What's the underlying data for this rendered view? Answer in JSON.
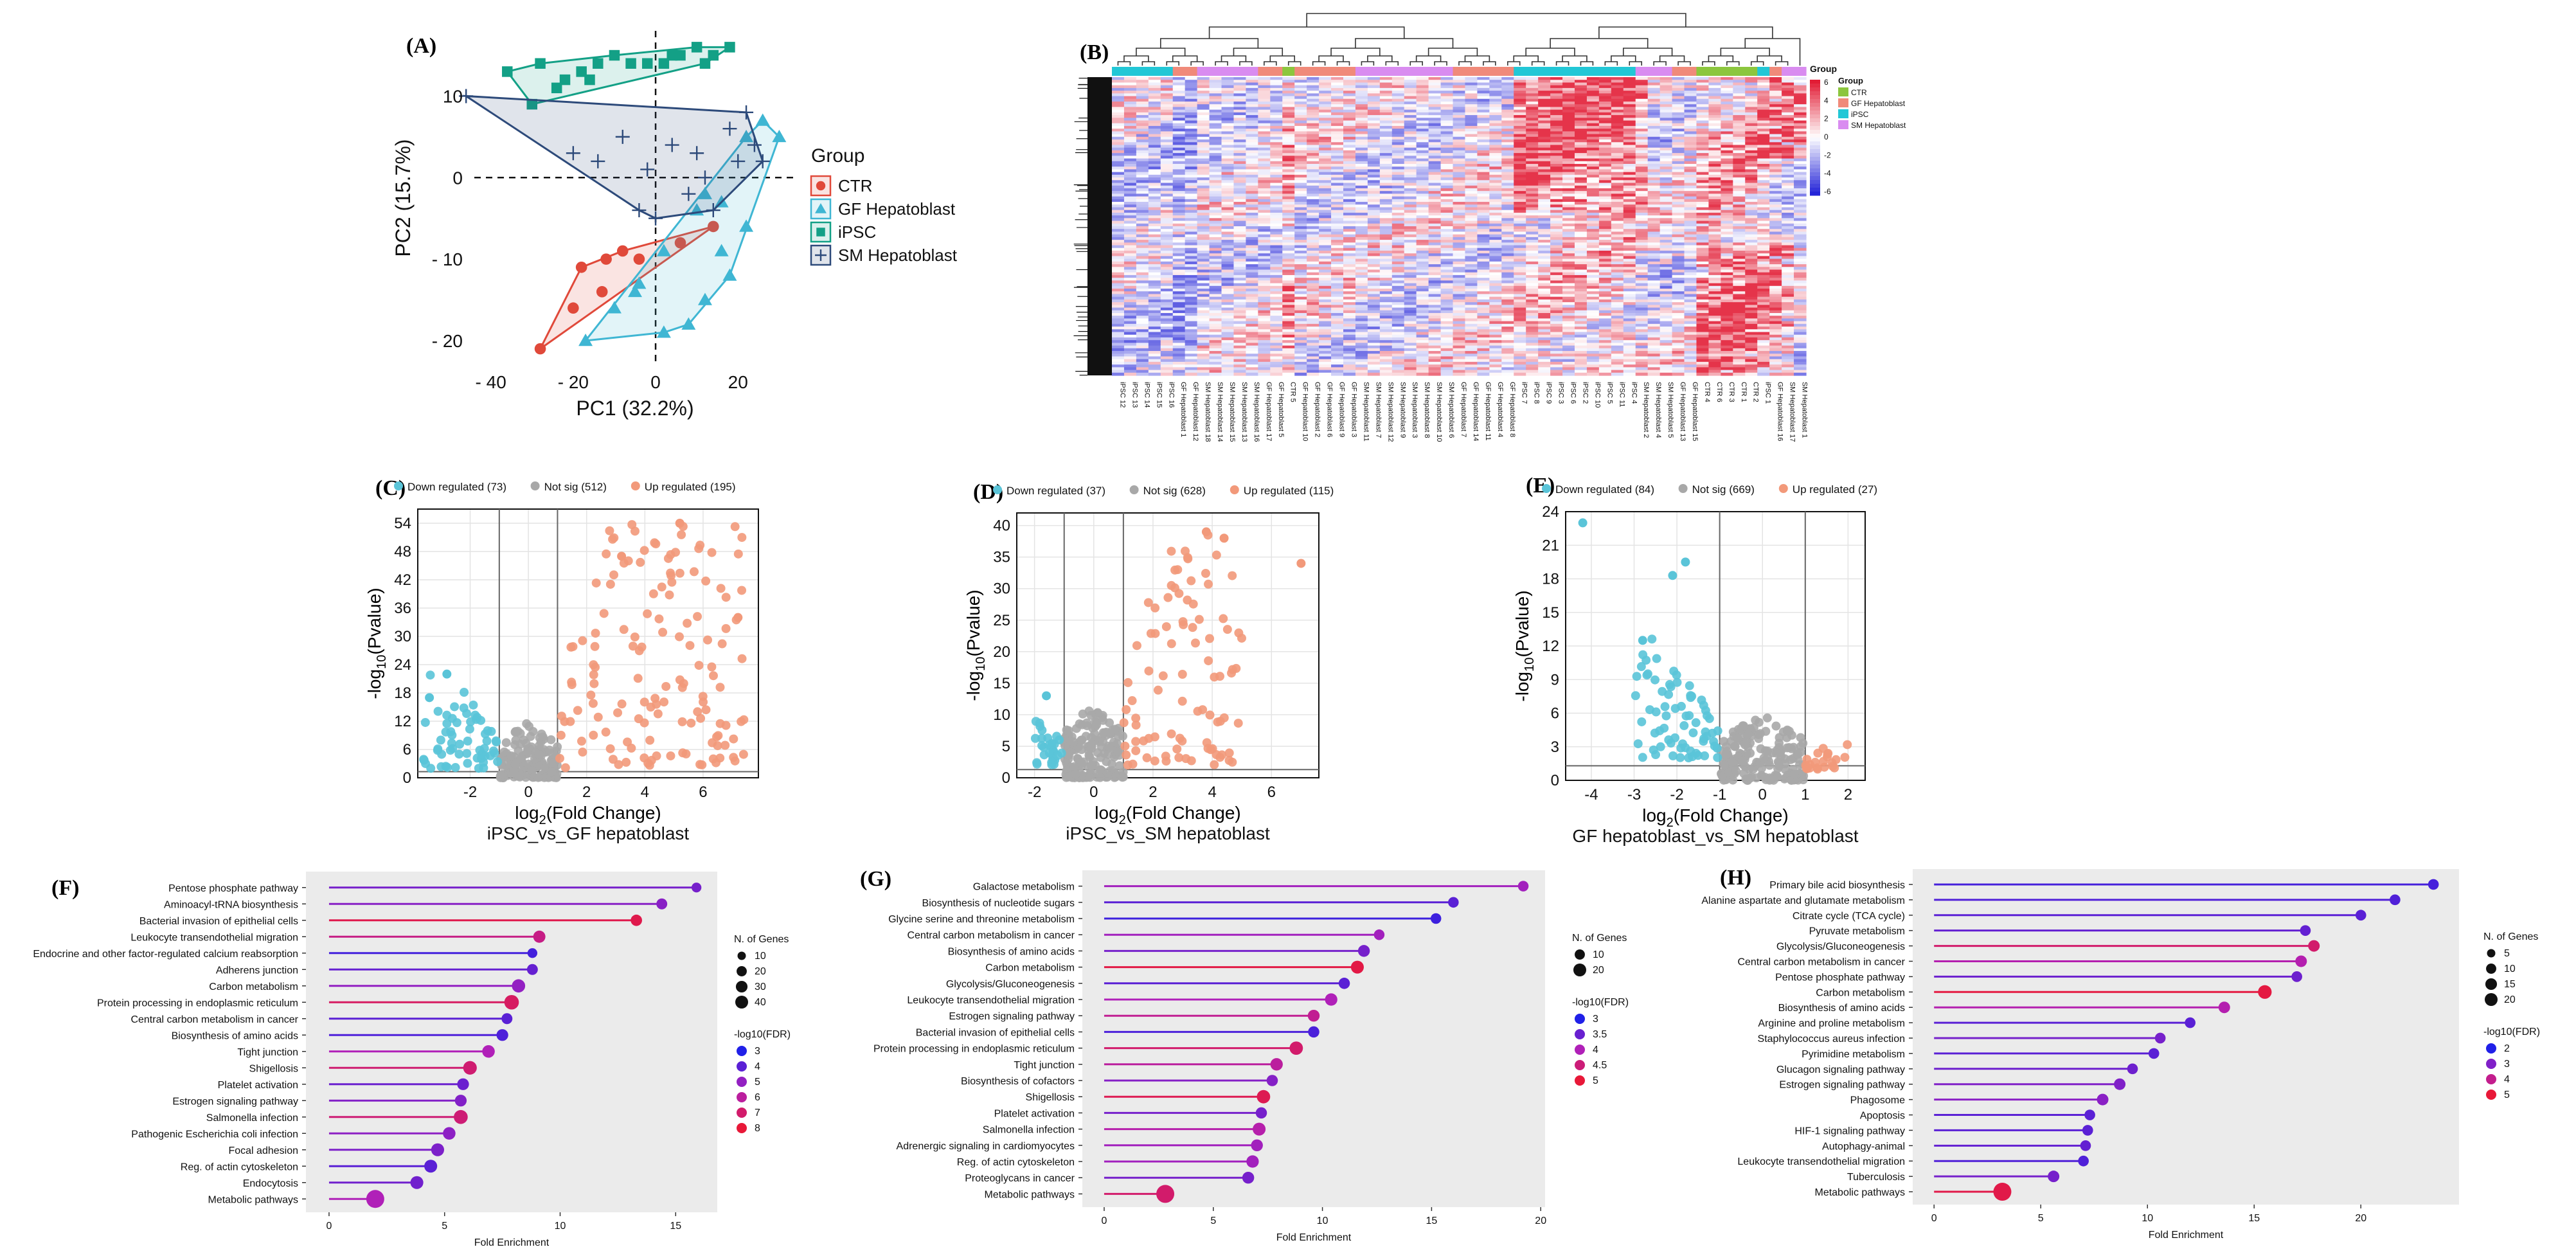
{
  "colors": {
    "ctr": "#e0493a",
    "gf": "#3fb6d3",
    "ipsc": "#13a086",
    "sm": "#2d4a7a",
    "down": "#5ac4d8",
    "ns": "#a8a8a8",
    "up": "#f2997a",
    "panel_bg": "#ebebeb",
    "hm_low": "#1a1ad6",
    "hm_mid": "#ffffff",
    "hm_high": "#e0102a",
    "ann_ctr": "#8cc63e",
    "ann_gf": "#f08a7a",
    "ann_ipsc": "#22c7d6",
    "ann_sm": "#d98cf0"
  },
  "chart_data": [
    {
      "id": "A",
      "type": "scatter",
      "title": "",
      "xlabel": "PC1 (32.2%)",
      "ylabel": "PC2 (15.7%)",
      "xlim": [
        -44,
        34
      ],
      "ylim": [
        -23,
        18
      ],
      "xticks": [
        -40,
        -20,
        0,
        20
      ],
      "xtick_labels": [
        "- 40",
        "- 20",
        "0",
        "20"
      ],
      "yticks": [
        10,
        0,
        -10,
        -20
      ],
      "ytick_labels": [
        "10",
        "0",
        "- 10",
        "- 20"
      ],
      "legend_title": "Group",
      "series": [
        {
          "name": "CTR",
          "marker": "circle",
          "points": [
            [
              -28,
              -21
            ],
            [
              -18,
              -11
            ],
            [
              -12,
              -10
            ],
            [
              -8,
              -9
            ],
            [
              -4,
              -10
            ],
            [
              6,
              -8
            ],
            [
              14,
              -6
            ],
            [
              -13,
              -14
            ],
            [
              -20,
              -16
            ]
          ]
        },
        {
          "name": "GF Hepatoblast",
          "marker": "triangle",
          "points": [
            [
              -17,
              -20
            ],
            [
              -10,
              -16
            ],
            [
              -5,
              -14
            ],
            [
              2,
              -9
            ],
            [
              10,
              -4
            ],
            [
              12,
              -2
            ],
            [
              16,
              -3
            ],
            [
              22,
              5
            ],
            [
              26,
              7
            ],
            [
              30,
              5
            ],
            [
              22,
              -6
            ],
            [
              18,
              -12
            ],
            [
              8,
              -18
            ],
            [
              2,
              -19
            ],
            [
              -4,
              -13
            ],
            [
              12,
              -15
            ],
            [
              16,
              -9
            ]
          ]
        },
        {
          "name": "iPSC",
          "marker": "square",
          "points": [
            [
              -36,
              13
            ],
            [
              -28,
              14
            ],
            [
              -22,
              12
            ],
            [
              -18,
              13
            ],
            [
              -14,
              14
            ],
            [
              -10,
              15
            ],
            [
              -6,
              14
            ],
            [
              -2,
              14
            ],
            [
              2,
              14
            ],
            [
              6,
              15
            ],
            [
              10,
              16
            ],
            [
              14,
              15
            ],
            [
              18,
              16
            ],
            [
              -30,
              9
            ],
            [
              -24,
              11
            ],
            [
              -16,
              12
            ],
            [
              4,
              15
            ],
            [
              12,
              14
            ]
          ]
        },
        {
          "name": "SM Hepatoblast",
          "marker": "plus",
          "points": [
            [
              -46,
              10
            ],
            [
              -8,
              5
            ],
            [
              -14,
              2
            ],
            [
              -20,
              3
            ],
            [
              -4,
              -4
            ],
            [
              0,
              -5
            ],
            [
              8,
              -2
            ],
            [
              12,
              0
            ],
            [
              20,
              2
            ],
            [
              24,
              4
            ],
            [
              22,
              8
            ],
            [
              26,
              2
            ],
            [
              14,
              -4
            ],
            [
              10,
              3
            ],
            [
              -2,
              1
            ],
            [
              4,
              4
            ],
            [
              18,
              6
            ]
          ]
        }
      ]
    },
    {
      "id": "B",
      "type": "heatmap",
      "legend_title": "Group",
      "scale_ticks": [
        "6",
        "4",
        "2",
        "0",
        "-2",
        "-4",
        "-6"
      ],
      "legend_groups": [
        "CTR",
        "GF Hepatoblast",
        "iPSC",
        "SM Hepatoblast"
      ],
      "columns": [
        "iPSC 12",
        "iPSC 13",
        "iPSC 14",
        "iPSC 15",
        "iPSC 16",
        "GF Hepatoblast 1",
        "GF Hepatoblast 12",
        "SM Hepatoblast 18",
        "SM Hepatoblast 14",
        "SM Hepatoblast 15",
        "SM Hepatoblast 13",
        "SM Hepatoblast 16",
        "GF Hepatoblast 17",
        "GF Hepatoblast 5",
        "CTR 5",
        "GF Hepatoblast 10",
        "GF Hepatoblast 2",
        "GF Hepatoblast 6",
        "GF Hepatoblast 9",
        "GF Hepatoblast 3",
        "SM Hepatoblast 11",
        "SM Hepatoblast 7",
        "SM Hepatoblast 12",
        "SM Hepatoblast 9",
        "SM Hepatoblast 3",
        "SM Hepatoblast 8",
        "SM Hepatoblast 10",
        "SM Hepatoblast 6",
        "GF Hepatoblast 7",
        "GF Hepatoblast 14",
        "GF Hepatoblast 11",
        "GF Hepatoblast 4",
        "GF Hepatoblast 8",
        "iPSC 7",
        "iPSC 8",
        "iPSC 9",
        "iPSC 3",
        "iPSC 6",
        "iPSC 2",
        "iPSC 10",
        "iPSC 5",
        "iPSC 11",
        "iPSC 4",
        "SM Hepatoblast 2",
        "SM Hepatoblast 4",
        "SM Hepatoblast 5",
        "GF Hepatoblast 13",
        "GF Hepatoblast 15",
        "CTR 4",
        "CTR 6",
        "CTR 3",
        "CTR 1",
        "CTR 2",
        "iPSC 1",
        "GF Hepatoblast 16",
        "SM Hepatoblast 17",
        "SM Hepatoblast 1"
      ],
      "column_groups": [
        "iPSC",
        "iPSC",
        "iPSC",
        "iPSC",
        "iPSC",
        "GF Hepatoblast",
        "GF Hepatoblast",
        "SM Hepatoblast",
        "SM Hepatoblast",
        "SM Hepatoblast",
        "SM Hepatoblast",
        "SM Hepatoblast",
        "GF Hepatoblast",
        "GF Hepatoblast",
        "CTR",
        "GF Hepatoblast",
        "GF Hepatoblast",
        "GF Hepatoblast",
        "GF Hepatoblast",
        "GF Hepatoblast",
        "SM Hepatoblast",
        "SM Hepatoblast",
        "SM Hepatoblast",
        "SM Hepatoblast",
        "SM Hepatoblast",
        "SM Hepatoblast",
        "SM Hepatoblast",
        "SM Hepatoblast",
        "GF Hepatoblast",
        "GF Hepatoblast",
        "GF Hepatoblast",
        "GF Hepatoblast",
        "GF Hepatoblast",
        "iPSC",
        "iPSC",
        "iPSC",
        "iPSC",
        "iPSC",
        "iPSC",
        "iPSC",
        "iPSC",
        "iPSC",
        "iPSC",
        "SM Hepatoblast",
        "SM Hepatoblast",
        "SM Hepatoblast",
        "GF Hepatoblast",
        "GF Hepatoblast",
        "CTR",
        "CTR",
        "CTR",
        "CTR",
        "CTR",
        "iPSC",
        "GF Hepatoblast",
        "SM Hepatoblast",
        "SM Hepatoblast"
      ]
    },
    {
      "id": "C",
      "type": "scatter",
      "title": "iPSC_vs_GF hepatoblast",
      "xlabel": "log2(Fold Change)",
      "ylabel": "-log10(Pvalue)",
      "xlim": [
        -3.8,
        7.9
      ],
      "ylim": [
        0,
        57
      ],
      "xticks": [
        -2,
        0,
        2,
        4,
        6
      ],
      "yticks": [
        0,
        6,
        12,
        18,
        24,
        30,
        36,
        42,
        48,
        54
      ],
      "vlines": [
        -1,
        1
      ],
      "hline": 1.3,
      "legend": [
        {
          "name": "Down regulated (73)",
          "class": "down"
        },
        {
          "name": "Not sig (512)",
          "class": "ns"
        },
        {
          "name": "Up regulated (195)",
          "class": "up"
        }
      ],
      "seed": 11,
      "n_down": 60,
      "n_ns": 150,
      "n_up": 140,
      "down_range": [
        -3.6,
        -1.0,
        2,
        22
      ],
      "ns_range": [
        -1.0,
        1.0,
        0,
        12
      ],
      "up_range": [
        1.0,
        7.4,
        2,
        54
      ],
      "extra_points": [
        [
          5.2,
          54,
          "up"
        ],
        [
          7.2,
          34,
          "up"
        ],
        [
          3.2,
          47,
          "up"
        ],
        [
          -3.4,
          17,
          "down"
        ],
        [
          -2.8,
          22,
          "down"
        ]
      ]
    },
    {
      "id": "D",
      "type": "scatter",
      "title": "iPSC_vs_SM hepatoblast",
      "xlabel": "log2(Fold Change)",
      "ylabel": "-log10(Pvalue)",
      "xlim": [
        -2.6,
        7.6
      ],
      "ylim": [
        0,
        42
      ],
      "xticks": [
        -2,
        0,
        2,
        4,
        6
      ],
      "yticks": [
        0,
        5,
        10,
        15,
        20,
        25,
        30,
        35,
        40
      ],
      "vlines": [
        -1,
        1
      ],
      "hline": 1.3,
      "legend": [
        {
          "name": "Down regulated (37)",
          "class": "down"
        },
        {
          "name": "Not sig (628)",
          "class": "ns"
        },
        {
          "name": "Up regulated (115)",
          "class": "up"
        }
      ],
      "seed": 23,
      "n_down": 30,
      "n_ns": 170,
      "n_up": 90,
      "down_range": [
        -2.0,
        -1.0,
        2,
        14
      ],
      "ns_range": [
        -1.0,
        1.0,
        0,
        12
      ],
      "up_range": [
        1.0,
        5.0,
        2,
        40
      ],
      "extra_points": [
        [
          7.0,
          34,
          "up"
        ],
        [
          3.8,
          39,
          "up"
        ],
        [
          4.4,
          38,
          "up"
        ],
        [
          -1.6,
          13,
          "down"
        ]
      ]
    },
    {
      "id": "E",
      "type": "scatter",
      "title": "GF hepatoblast_vs_SM hepatoblast",
      "xlabel": "log2(Fold Change)",
      "ylabel": "-log10(Pvalue)",
      "xlim": [
        -4.6,
        2.4
      ],
      "ylim": [
        0,
        24
      ],
      "xticks": [
        -4,
        -3,
        -2,
        -1,
        0,
        1,
        2
      ],
      "yticks": [
        0,
        3,
        6,
        9,
        12,
        15,
        18,
        21,
        24
      ],
      "vlines": [
        -1,
        1
      ],
      "hline": 1.3,
      "legend": [
        {
          "name": "Down regulated (84)",
          "class": "down"
        },
        {
          "name": "Not sig (669)",
          "class": "ns"
        },
        {
          "name": "Up regulated (27)",
          "class": "up"
        }
      ],
      "seed": 37,
      "n_down": 70,
      "n_ns": 180,
      "n_up": 22,
      "down_range": [
        -3.0,
        -1.0,
        2,
        13
      ],
      "ns_range": [
        -1.0,
        1.0,
        0,
        6
      ],
      "up_range": [
        1.0,
        2.0,
        1,
        5
      ],
      "extra_points": [
        [
          -4.2,
          23,
          "down"
        ],
        [
          -1.8,
          19.5,
          "down"
        ],
        [
          -2.1,
          18.3,
          "down"
        ],
        [
          -2.8,
          12.5,
          "down"
        ]
      ]
    },
    {
      "id": "F",
      "type": "lollipop",
      "xlabel": "Fold Enrichment",
      "xlim": [
        -1,
        16.8
      ],
      "xticks": [
        0,
        5,
        10,
        15
      ],
      "size_title": "N. of Genes",
      "size_values": [
        10,
        20,
        30,
        40
      ],
      "color_title": "-log10(FDR)",
      "color_values": [
        3,
        4,
        5,
        6,
        7,
        8
      ],
      "color_range": [
        3,
        8
      ],
      "categories": [
        "Pentose phosphate pathway",
        "Aminoacyl-tRNA biosynthesis",
        "Bacterial invasion of epithelial cells",
        "Leukocyte transendothelial migration",
        "Endocrine and other factor-regulated calcium reabsorption",
        "Adherens junction",
        "Carbon metabolism",
        "Protein processing in endoplasmic reticulum",
        "Central carbon metabolism in cancer",
        "Biosynthesis of amino acids",
        "Tight junction",
        "Shigellosis",
        "Platelet activation",
        "Estrogen signaling pathway",
        "Salmonella infection",
        "Pathogenic Escherichia coli infection",
        "Focal adhesion",
        "Reg. of actin cytoskeleton",
        "Endocytosis",
        "Metabolic pathways"
      ],
      "values": [
        15.9,
        14.4,
        13.3,
        9.1,
        8.8,
        8.8,
        8.2,
        7.9,
        7.7,
        7.5,
        6.9,
        6.1,
        5.8,
        5.7,
        5.7,
        5.2,
        4.7,
        4.4,
        3.8,
        2.0
      ],
      "genes": [
        4,
        6,
        7,
        9,
        4,
        6,
        12,
        16,
        6,
        8,
        10,
        13,
        8,
        8,
        14,
        10,
        11,
        11,
        11,
        30
      ],
      "fdr": [
        4.5,
        4.8,
        7.6,
        6.5,
        3.6,
        4.2,
        5.0,
        7.2,
        4.0,
        3.8,
        5.5,
        6.9,
        4.3,
        4.7,
        6.8,
        4.9,
        4.6,
        4.0,
        4.4,
        5.5
      ]
    },
    {
      "id": "G",
      "type": "lollipop",
      "xlabel": "Fold Enrichment",
      "xlim": [
        -1,
        20.2
      ],
      "xticks": [
        0,
        5,
        10,
        15,
        20
      ],
      "size_title": "N. of Genes",
      "size_values": [
        10,
        20
      ],
      "color_title": "-log10(FDR)",
      "color_values": [
        3.0,
        3.5,
        4.0,
        4.5,
        5.0
      ],
      "color_range": [
        3,
        5
      ],
      "categories": [
        "Galactose metabolism",
        "Biosynthesis of nucleotide sugars",
        "Glycine serine and threonine metabolism",
        "Central carbon metabolism in cancer",
        "Biosynthesis of amino acids",
        "Carbon metabolism",
        "Glycolysis/Gluconeogenesis",
        "Leukocyte transendothelial migration",
        "Estrogen signaling pathway",
        "Bacterial invasion of epithelial cells",
        "Protein processing in endoplasmic reticulum",
        "Tight junction",
        "Biosynthesis of cofactors",
        "Shigellosis",
        "Platelet activation",
        "Salmonella infection",
        "Adrenergic signaling in cardiomyocytes",
        "Reg. of actin cytoskeleton",
        "Proteoglycans in cancer",
        "Metabolic pathways"
      ],
      "values": [
        19.2,
        16.0,
        15.2,
        12.6,
        11.9,
        11.6,
        11.0,
        10.4,
        9.6,
        9.6,
        8.8,
        7.9,
        7.7,
        7.3,
        7.2,
        7.1,
        7.0,
        6.8,
        6.6,
        2.8
      ],
      "genes": [
        4,
        4,
        4,
        4,
        6,
        8,
        5,
        7,
        6,
        5,
        9,
        7,
        5,
        9,
        5,
        8,
        6,
        7,
        6,
        22
      ],
      "fdr": [
        3.9,
        3.4,
        3.2,
        3.9,
        3.6,
        4.9,
        3.4,
        4.0,
        4.3,
        3.3,
        4.6,
        4.2,
        3.7,
        4.8,
        3.6,
        4.1,
        3.9,
        3.9,
        3.6,
        4.6
      ]
    },
    {
      "id": "H",
      "type": "lollipop",
      "xlabel": "Fold Enrichment",
      "xlim": [
        -1,
        24.6
      ],
      "xticks": [
        0,
        5,
        10,
        15,
        20
      ],
      "size_title": "N. of Genes",
      "size_values": [
        5,
        10,
        15,
        20
      ],
      "color_title": "-log10(FDR)",
      "color_values": [
        2,
        3,
        4,
        5
      ],
      "color_range": [
        2,
        5
      ],
      "categories": [
        "Primary bile acid biosynthesis",
        "Alanine aspartate and glutamate metabolism",
        "Citrate cycle (TCA cycle)",
        "Pyruvate metabolism",
        "Glycolysis/Gluconeogenesis",
        "Central carbon metabolism in cancer",
        "Pentose phosphate pathway",
        "Carbon metabolism",
        "Biosynthesis of amino acids",
        "Arginine and proline metabolism",
        "Staphylococcus aureus infection",
        "Pyrimidine metabolism",
        "Glucagon signaling pathway",
        "Estrogen signaling pathway",
        "Phagosome",
        "Apoptosis",
        "HIF-1 signaling pathway",
        "Autophagy-animal",
        "Leukocyte transendothelial migration",
        "Tuberculosis",
        "Metabolic pathways"
      ],
      "values": [
        23.4,
        21.6,
        20.0,
        17.4,
        17.8,
        17.2,
        17.0,
        15.5,
        13.6,
        12.0,
        10.6,
        10.3,
        9.3,
        8.7,
        7.9,
        7.3,
        7.2,
        7.1,
        7.0,
        5.6,
        3.2
      ],
      "genes": [
        3,
        3,
        3,
        3,
        4,
        4,
        3,
        7,
        4,
        3,
        3,
        3,
        3,
        4,
        4,
        3,
        3,
        3,
        3,
        4,
        16
      ],
      "fdr": [
        2.4,
        2.5,
        2.6,
        2.7,
        4.4,
        3.6,
        2.8,
        4.9,
        3.6,
        2.6,
        2.9,
        2.6,
        2.8,
        3.0,
        3.1,
        2.6,
        2.6,
        2.7,
        2.5,
        2.9,
        4.8
      ]
    }
  ],
  "panel_labels": [
    "(A)",
    "(B)",
    "(C)",
    "(D)",
    "(E)",
    "(F)",
    "(G)",
    "(H)"
  ]
}
